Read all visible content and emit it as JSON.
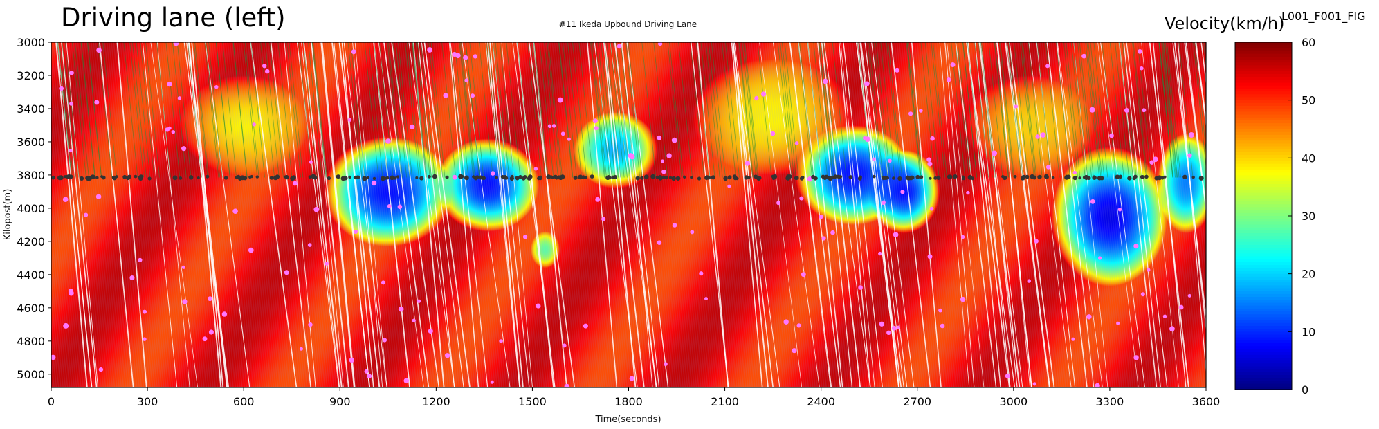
{
  "header": {
    "main_title": "Driving lane (left)",
    "figure_id": "L001_F001_FIG"
  },
  "chart_data": {
    "type": "heatmap",
    "title": "#11 Ikeda Upbound Driving Lane",
    "xlabel": "Time(seconds)",
    "ylabel": "Kilopost(m)",
    "xlim": [
      0,
      3600
    ],
    "ylim": [
      5080,
      3000
    ],
    "x_ticks": [
      0,
      300,
      600,
      900,
      1200,
      1500,
      1800,
      2100,
      2400,
      2700,
      3000,
      3300,
      3600
    ],
    "y_ticks": [
      3000,
      3200,
      3400,
      3600,
      3800,
      4000,
      4200,
      4400,
      4600,
      4800,
      5000
    ],
    "colorbar": {
      "label": "Velocity(km/h)",
      "range": [
        0,
        60
      ],
      "ticks": [
        0,
        10,
        20,
        30,
        40,
        50,
        60
      ],
      "colormap": "jet"
    },
    "detector_line_kilopost": 3815,
    "free_flow_speed_kmh": 52,
    "slow_regions": [
      {
        "t_center": 1050,
        "kp_center": 3900,
        "t_half_width": 200,
        "kp_half_height": 330,
        "min_speed_kmh": 8
      },
      {
        "t_center": 1360,
        "kp_center": 3860,
        "t_half_width": 160,
        "kp_half_height": 280,
        "min_speed_kmh": 8
      },
      {
        "t_center": 1540,
        "kp_center": 4250,
        "t_half_width": 45,
        "kp_half_height": 110,
        "min_speed_kmh": 28
      },
      {
        "t_center": 1760,
        "kp_center": 3650,
        "t_half_width": 130,
        "kp_half_height": 230,
        "min_speed_kmh": 18
      },
      {
        "t_center": 2500,
        "kp_center": 3800,
        "t_half_width": 180,
        "kp_half_height": 300,
        "min_speed_kmh": 8
      },
      {
        "t_center": 2660,
        "kp_center": 3900,
        "t_half_width": 110,
        "kp_half_height": 250,
        "min_speed_kmh": 8
      },
      {
        "t_center": 3300,
        "kp_center": 4050,
        "t_half_width": 180,
        "kp_half_height": 420,
        "min_speed_kmh": 6
      },
      {
        "t_center": 3540,
        "kp_center": 3850,
        "t_half_width": 90,
        "kp_half_height": 300,
        "min_speed_kmh": 15
      },
      {
        "t_center": 600,
        "kp_center": 3500,
        "t_half_width": 200,
        "kp_half_height": 300,
        "min_speed_kmh": 38
      },
      {
        "t_center": 2250,
        "kp_center": 3450,
        "t_half_width": 250,
        "kp_half_height": 350,
        "min_speed_kmh": 38
      },
      {
        "t_center": 3050,
        "kp_center": 3500,
        "t_half_width": 200,
        "kp_half_height": 300,
        "min_speed_kmh": 40
      }
    ],
    "colors": {
      "trajectory_upstream_of_detector": "#1a8a3a",
      "detector_marker": "#333333",
      "event_marker": "#ff77ff"
    }
  }
}
